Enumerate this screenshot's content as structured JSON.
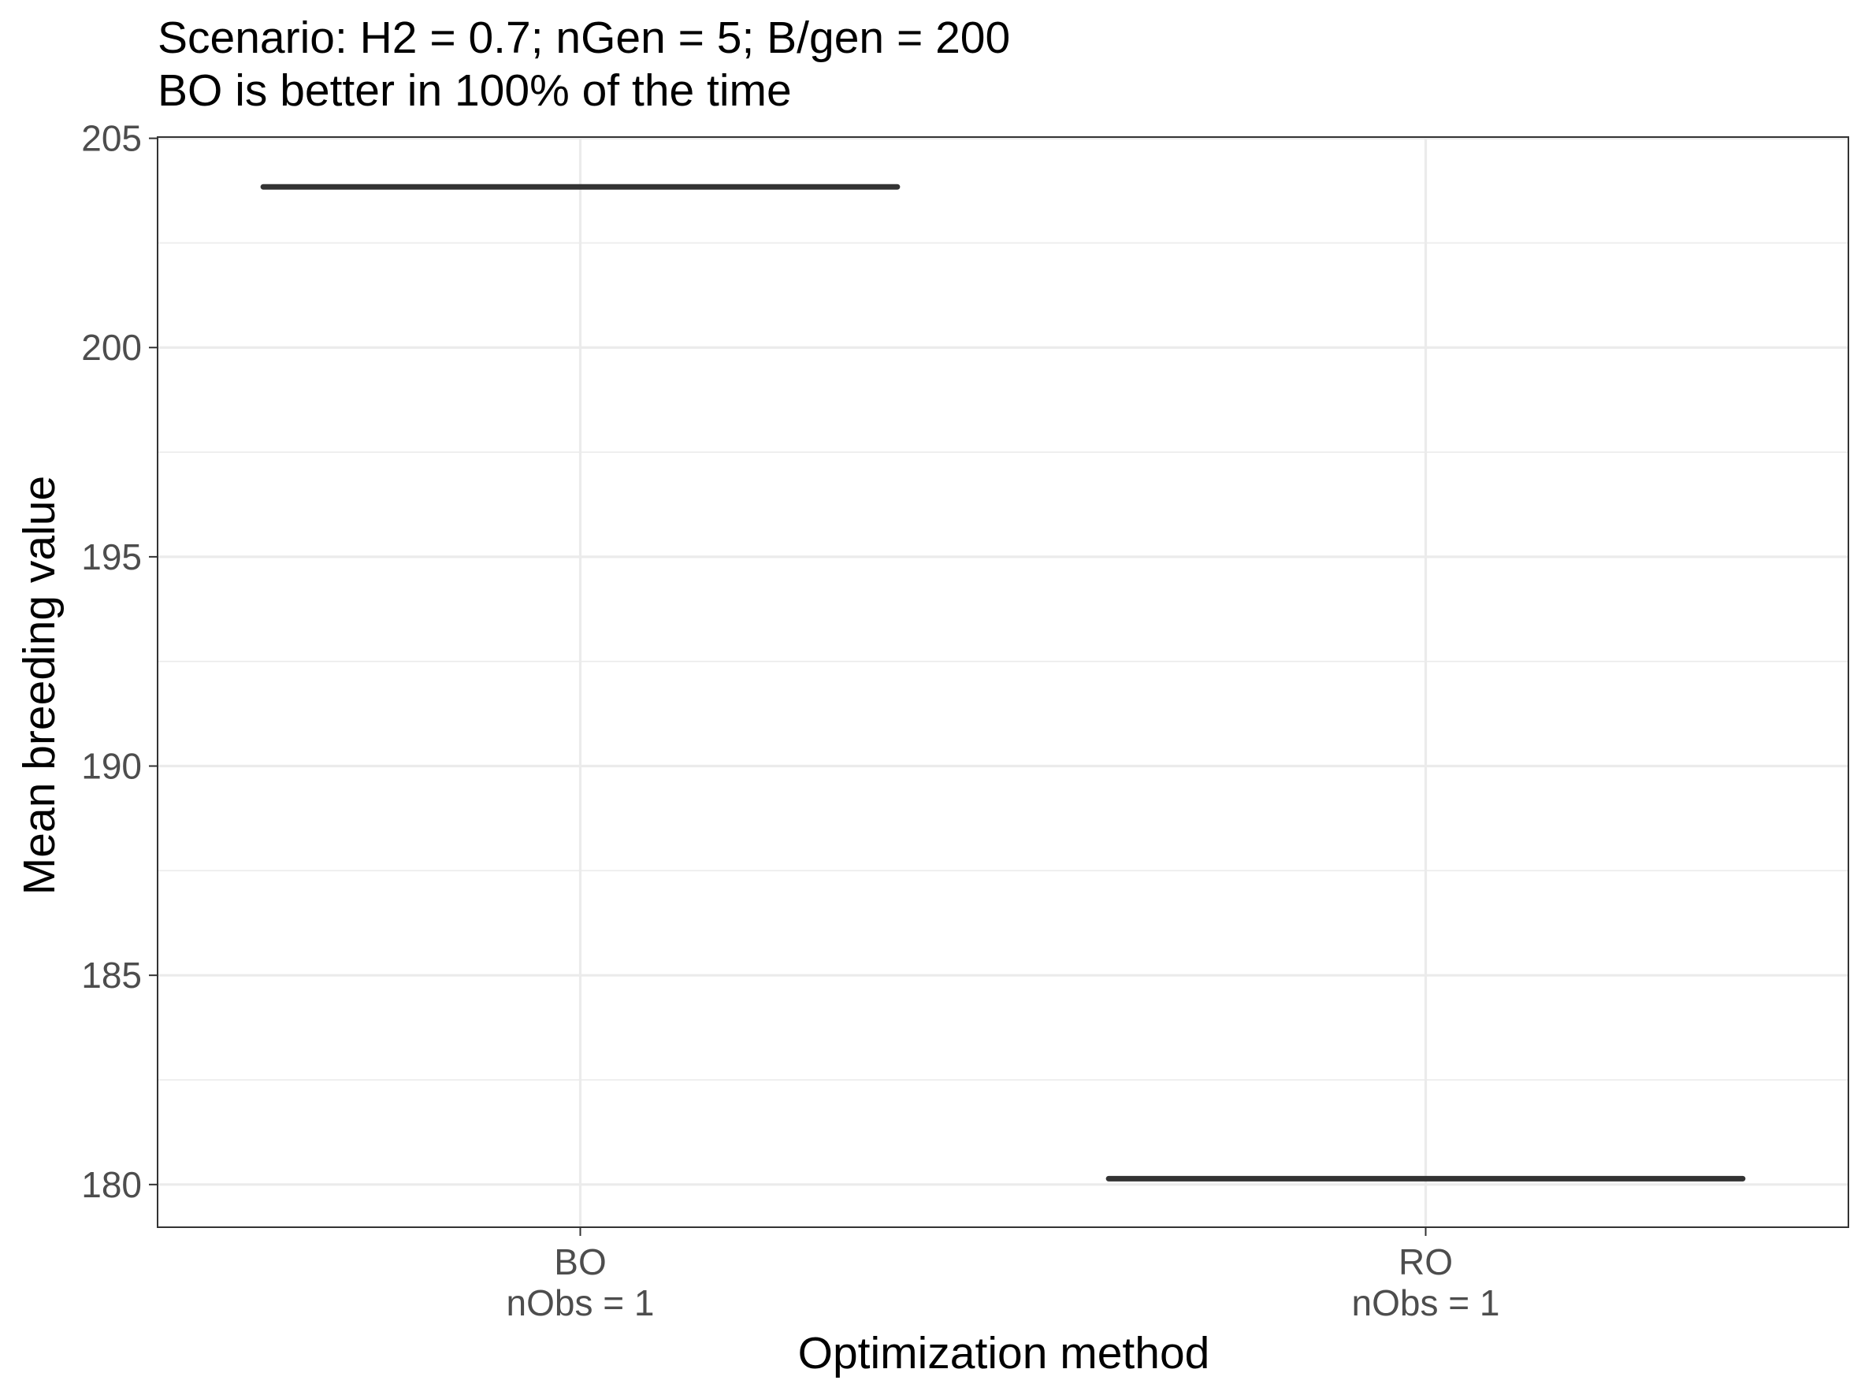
{
  "chart_data": {
    "type": "boxplot",
    "title": "Scenario: H2 = 0.7; nGen = 5; B/gen = 200",
    "subtitle": "BO is better in 100% of the time",
    "xlabel": "Optimization method",
    "ylabel": "Mean breeding value",
    "categories": [
      {
        "label": "BO",
        "sublabel": "nObs = 1",
        "value": 203.84
      },
      {
        "label": "RO",
        "sublabel": "nObs = 1",
        "value": 180.14
      }
    ],
    "ylim": [
      178.98,
      205.03
    ],
    "yticks": [
      180,
      185,
      190,
      195,
      200,
      205
    ],
    "grid": true,
    "colors": {
      "median": "#333333",
      "grid": "#ebebeb",
      "border": "#333333",
      "tick_text": "#4d4d4d"
    }
  }
}
